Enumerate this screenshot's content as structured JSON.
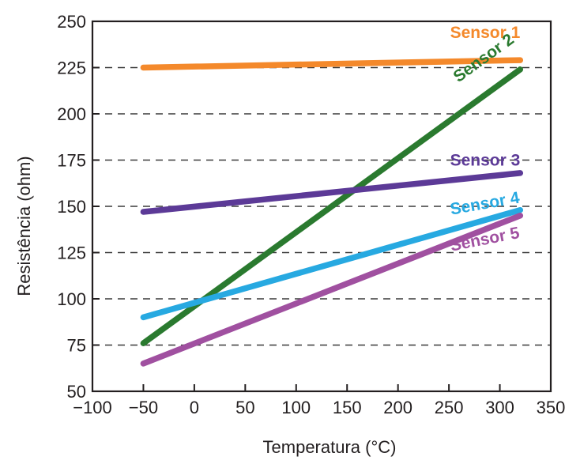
{
  "chart_data": {
    "type": "line",
    "xlabel": "Temperatura (°C)",
    "ylabel": "Resistência (ohm)",
    "xlim": [
      -100,
      350
    ],
    "ylim": [
      50,
      250
    ],
    "x_ticks": [
      -100,
      -50,
      0,
      50,
      100,
      150,
      200,
      250,
      300,
      350
    ],
    "x_tick_labels": [
      "−100",
      "−50",
      "0",
      "50",
      "100",
      "150",
      "200",
      "250",
      "300",
      "350"
    ],
    "y_ticks": [
      50,
      75,
      100,
      125,
      150,
      175,
      200,
      225,
      250
    ],
    "y_tick_labels": [
      "50",
      "75",
      "100",
      "125",
      "150",
      "175",
      "200",
      "225",
      "250"
    ],
    "grid": "horizontal dashed",
    "legend": "inline labels near line ends",
    "series": [
      {
        "name": "Sensor 1",
        "color": "#f4892b",
        "x": [
          -50,
          320
        ],
        "values": [
          225,
          229
        ]
      },
      {
        "name": "Sensor 2",
        "color": "#2a7a2f",
        "x": [
          -50,
          320
        ],
        "values": [
          76,
          224
        ]
      },
      {
        "name": "Sensor 3",
        "color": "#5c3a97",
        "x": [
          -50,
          320
        ],
        "values": [
          147,
          168
        ]
      },
      {
        "name": "Sensor 4",
        "color": "#27a9e1",
        "x": [
          -50,
          320
        ],
        "values": [
          90,
          148
        ]
      },
      {
        "name": "Sensor 5",
        "color": "#a050a0",
        "x": [
          -50,
          320
        ],
        "values": [
          65,
          145
        ]
      }
    ]
  }
}
